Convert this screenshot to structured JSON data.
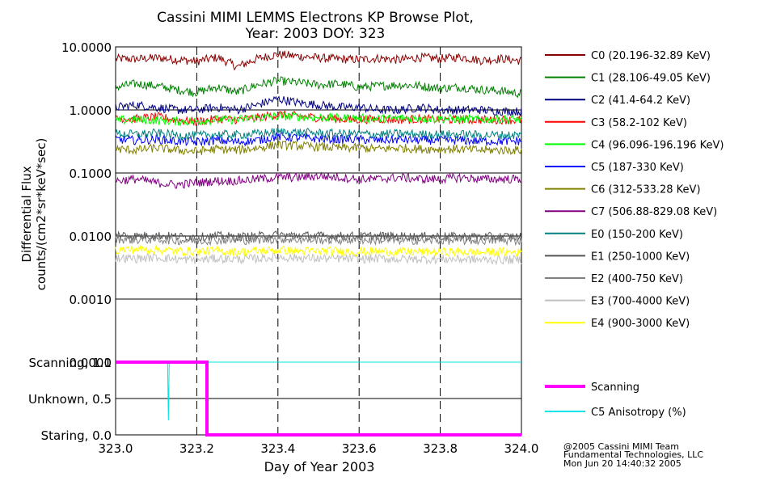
{
  "chart_data": [
    {
      "type": "line",
      "title": "Cassini MIMI LEMMS Electrons KP Browse Plot,",
      "subtitle": "Year: 2003 DOY: 323",
      "ylabel": "Differential Flux",
      "ylabel2": "counts/(cm^2*sr*keV*sec)",
      "yscale": "log",
      "ylim": [
        0.0001,
        10.0
      ],
      "xlim": [
        323.0,
        324.0
      ],
      "y_tick_labels": [
        "10.0000",
        "1.0000",
        "0.1000",
        "0.0100",
        "0.0010",
        "0.0001"
      ],
      "y_tick_values": [
        10,
        1,
        0.1,
        0.01,
        0.001,
        0.0001
      ],
      "series": [
        {
          "name": "C0 (20.196-32.89 KeV)",
          "color": "#8b0000",
          "values": [
            6.5,
            6.4,
            6.7,
            6.3,
            5.9,
            6.8,
            4.8,
            6.5,
            7.6,
            7.1,
            6.7,
            6.4,
            6.3,
            6.6,
            6.2,
            6.8,
            6.5,
            6.9,
            6.1,
            6.5,
            6.0
          ]
        },
        {
          "name": "C1 (28.106-49.05 KeV)",
          "color": "#008000",
          "values": [
            2.3,
            2.6,
            2.4,
            2.1,
            1.9,
            2.3,
            1.9,
            2.5,
            2.9,
            2.7,
            2.5,
            2.6,
            2.3,
            2.4,
            2.5,
            2.4,
            2.2,
            2.3,
            2.1,
            2.0,
            1.8
          ]
        },
        {
          "name": "C2 (41.4-64.2 KeV)",
          "color": "#000080",
          "values": [
            1.1,
            1.2,
            1.1,
            1.0,
            1.0,
            1.1,
            1.0,
            1.2,
            1.5,
            1.3,
            1.2,
            1.1,
            1.1,
            1.0,
            1.0,
            1.1,
            1.0,
            1.0,
            1.0,
            0.95,
            0.95
          ]
        },
        {
          "name": "C3 (58.2-102 KeV)",
          "color": "#ff0000",
          "values": [
            0.75,
            0.72,
            0.78,
            0.7,
            0.65,
            0.72,
            0.7,
            0.75,
            0.85,
            0.8,
            0.75,
            0.72,
            0.7,
            0.72,
            0.7,
            0.72,
            0.7,
            0.7,
            0.7,
            0.7,
            0.68
          ]
        },
        {
          "name": "C4 (96.096-196.196 KeV)",
          "color": "#00ff00",
          "values": [
            0.68,
            0.7,
            0.68,
            0.66,
            0.66,
            0.7,
            0.7,
            0.75,
            0.8,
            0.78,
            0.76,
            0.74,
            0.74,
            0.72,
            0.74,
            0.74,
            0.72,
            0.72,
            0.7,
            0.72,
            0.7
          ]
        },
        {
          "name": "C5 (187-330 KeV)",
          "color": "#0000ff",
          "values": [
            0.34,
            0.33,
            0.34,
            0.32,
            0.31,
            0.33,
            0.31,
            0.33,
            0.38,
            0.36,
            0.35,
            0.34,
            0.34,
            0.33,
            0.34,
            0.33,
            0.33,
            0.33,
            0.32,
            0.32,
            0.32
          ]
        },
        {
          "name": "C6 (312-533.28 KeV)",
          "color": "#808000",
          "values": [
            0.24,
            0.23,
            0.25,
            0.23,
            0.22,
            0.24,
            0.23,
            0.25,
            0.28,
            0.27,
            0.26,
            0.25,
            0.25,
            0.24,
            0.25,
            0.24,
            0.24,
            0.24,
            0.23,
            0.23,
            0.23
          ]
        },
        {
          "name": "C7 (506.88-829.08 KeV)",
          "color": "#800080",
          "values": [
            0.075,
            0.08,
            0.07,
            0.065,
            0.07,
            0.075,
            0.075,
            0.08,
            0.085,
            0.085,
            0.09,
            0.085,
            0.08,
            0.08,
            0.085,
            0.08,
            0.08,
            0.085,
            0.08,
            0.08,
            0.08
          ]
        },
        {
          "name": "E0 (150-200 KeV)",
          "color": "#008080",
          "values": [
            0.42,
            0.41,
            0.43,
            0.4,
            0.39,
            0.41,
            0.4,
            0.42,
            0.45,
            0.44,
            0.43,
            0.42,
            0.42,
            0.41,
            0.42,
            0.41,
            0.41,
            0.41,
            0.4,
            0.4,
            0.4
          ]
        },
        {
          "name": "E1 (250-1000 KeV)",
          "color": "#555555",
          "values": [
            0.0105,
            0.01,
            0.0102,
            0.0098,
            0.0096,
            0.01,
            0.0097,
            0.01,
            0.0104,
            0.0102,
            0.01,
            0.01,
            0.0099,
            0.01,
            0.0099,
            0.0098,
            0.0099,
            0.0098,
            0.0097,
            0.0098,
            0.0097
          ]
        },
        {
          "name": "E2 (400-750 KeV)",
          "color": "#808080",
          "values": [
            0.009,
            0.0087,
            0.0089,
            0.0085,
            0.0084,
            0.0087,
            0.0085,
            0.0087,
            0.009,
            0.0088,
            0.0087,
            0.0087,
            0.0086,
            0.0086,
            0.0086,
            0.0085,
            0.0086,
            0.0085,
            0.0085,
            0.0085,
            0.0085
          ]
        },
        {
          "name": "E3 (700-4000 KeV)",
          "color": "#c0c0c0",
          "values": [
            0.0045,
            0.0044,
            0.0046,
            0.0043,
            0.0042,
            0.0044,
            0.0043,
            0.0044,
            0.0046,
            0.0045,
            0.0044,
            0.0044,
            0.0043,
            0.0044,
            0.0043,
            0.0043,
            0.0043,
            0.0043,
            0.0042,
            0.0042,
            0.0042
          ]
        },
        {
          "name": "E4 (900-3000 KeV)",
          "color": "#ffff00",
          "values": [
            0.006,
            0.0062,
            0.0061,
            0.0058,
            0.0057,
            0.0058,
            0.0056,
            0.0058,
            0.006,
            0.0058,
            0.0057,
            0.0058,
            0.0056,
            0.0057,
            0.0056,
            0.0056,
            0.0056,
            0.0056,
            0.0055,
            0.0056,
            0.0055
          ]
        }
      ]
    },
    {
      "type": "line",
      "ylim": [
        0.0,
        1.0
      ],
      "xlim": [
        323.0,
        324.0
      ],
      "xlabel": "Day of Year 2003",
      "y_tick_labels": [
        "Scanning, 1.0",
        "Unknown, 0.5",
        "Staring, 0.0"
      ],
      "y_tick_values": [
        1.0,
        0.5,
        0.0
      ],
      "x_tick_labels": [
        "323.0",
        "323.2",
        "323.4",
        "323.6",
        "323.8",
        "324.0"
      ],
      "x_tick_values": [
        323.0,
        323.2,
        323.4,
        323.6,
        323.8,
        324.0
      ],
      "series": [
        {
          "name": "Scanning",
          "color": "#ff00ff",
          "x": [
            323.0,
            323.225,
            323.225,
            324.0
          ],
          "values": [
            1.0,
            1.0,
            0.0,
            0.0
          ]
        },
        {
          "name": "C5 Anisotropy (%)",
          "color": "#00e5e5",
          "x": [
            323.0,
            323.128,
            323.13,
            323.132,
            324.0
          ],
          "values": [
            1.0,
            1.0,
            0.2,
            1.0,
            1.0
          ]
        }
      ]
    }
  ],
  "footer": {
    "line1": "@2005 Cassini MIMI Team",
    "line2": "Fundamental Technologies, LLC",
    "line3": "Mon Jun 20 14:40:32 2005"
  }
}
